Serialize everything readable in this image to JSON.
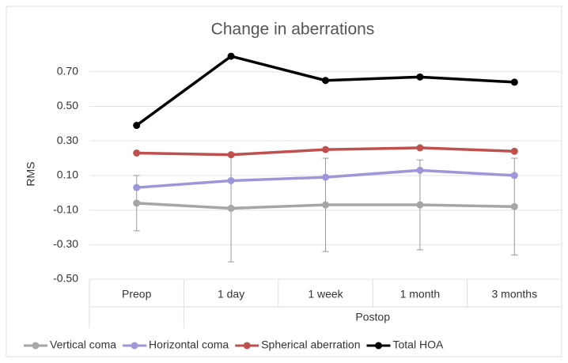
{
  "chart_data": {
    "type": "line",
    "title": "Change in aberrations",
    "ylabel": "RMS",
    "categories": [
      "Preop",
      "1 day",
      "1 week",
      "1 month",
      "3 months"
    ],
    "group_label": "Postop",
    "ylim": [
      -0.5,
      0.85
    ],
    "yticks": [
      {
        "value": -0.5,
        "label": "-0.50"
      },
      {
        "value": -0.3,
        "label": "-0.30"
      },
      {
        "value": -0.1,
        "label": "-0.10"
      },
      {
        "value": 0.1,
        "label": "0.10"
      },
      {
        "value": 0.3,
        "label": "0.30"
      },
      {
        "value": 0.5,
        "label": "0.50"
      },
      {
        "value": 0.7,
        "label": "0.70"
      }
    ],
    "grid": true,
    "legend": "bottom",
    "series": [
      {
        "name": "Vertical coma",
        "color": "#a6a6a6",
        "values": [
          -0.06,
          -0.09,
          -0.07,
          -0.07,
          -0.08
        ],
        "errors": [
          0.16,
          0.31,
          0.27,
          0.26,
          0.28
        ]
      },
      {
        "name": "Horizontal coma",
        "color": "#9b97d9",
        "values": [
          0.03,
          0.07,
          0.09,
          0.13,
          0.1
        ]
      },
      {
        "name": "Spherical aberration",
        "color": "#c0504d",
        "values": [
          0.23,
          0.22,
          0.25,
          0.26,
          0.24
        ]
      },
      {
        "name": "Total HOA",
        "color": "#000000",
        "values": [
          0.39,
          0.79,
          0.65,
          0.67,
          0.64
        ]
      }
    ]
  }
}
